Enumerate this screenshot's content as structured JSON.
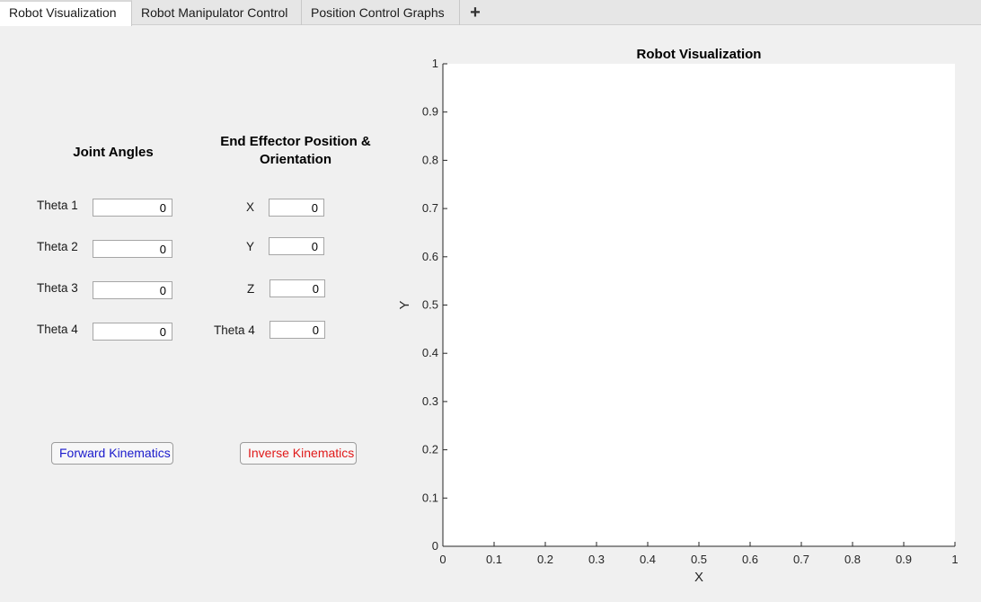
{
  "tabs": [
    {
      "label": "Robot Visualization",
      "active": true
    },
    {
      "label": "Robot Manipulator Control",
      "active": false
    },
    {
      "label": "Position Control Graphs",
      "active": false
    }
  ],
  "tab_add_label": "+",
  "joint_angles": {
    "heading": "Joint Angles",
    "fields": [
      {
        "label": "Theta 1",
        "value": "0"
      },
      {
        "label": "Theta 2",
        "value": "0"
      },
      {
        "label": "Theta 3",
        "value": "0"
      },
      {
        "label": "Theta 4",
        "value": "0"
      }
    ]
  },
  "end_effector": {
    "heading_line1": "End Effector Position &",
    "heading_line2": "Orientation",
    "fields": [
      {
        "label": "X",
        "value": "0"
      },
      {
        "label": "Y",
        "value": "0"
      },
      {
        "label": "Z",
        "value": "0"
      },
      {
        "label": "Theta 4",
        "value": "0"
      }
    ]
  },
  "buttons": {
    "forward": {
      "label": "Forward Kinematics",
      "color": "#1a1acc"
    },
    "inverse": {
      "label": "Inverse Kinematics",
      "color": "#e01a1a"
    }
  },
  "chart_data": {
    "type": "scatter",
    "title": "Robot Visualization",
    "xlabel": "X",
    "ylabel": "Y",
    "xlim": [
      0,
      1
    ],
    "ylim": [
      0,
      1
    ],
    "xticks": [
      "0",
      "0.1",
      "0.2",
      "0.3",
      "0.4",
      "0.5",
      "0.6",
      "0.7",
      "0.8",
      "0.9",
      "1"
    ],
    "yticks": [
      "0",
      "0.1",
      "0.2",
      "0.3",
      "0.4",
      "0.5",
      "0.6",
      "0.7",
      "0.8",
      "0.9",
      "1"
    ],
    "series": [],
    "grid": false
  }
}
